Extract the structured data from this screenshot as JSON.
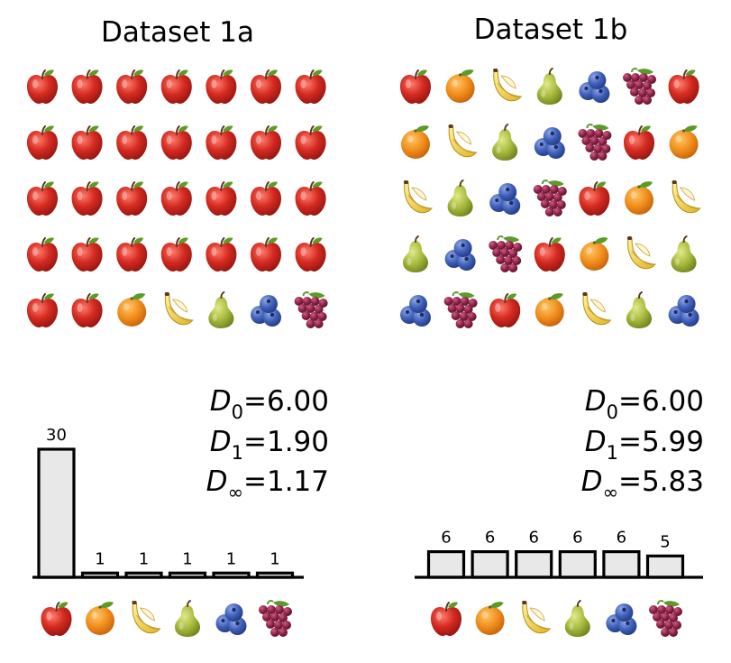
{
  "panels": [
    {
      "id": "a",
      "title": "Dataset 1a",
      "grid": [
        [
          "apple",
          "apple",
          "apple",
          "apple",
          "apple",
          "apple",
          "apple"
        ],
        [
          "apple",
          "apple",
          "apple",
          "apple",
          "apple",
          "apple",
          "apple"
        ],
        [
          "apple",
          "apple",
          "apple",
          "apple",
          "apple",
          "apple",
          "apple"
        ],
        [
          "apple",
          "apple",
          "apple",
          "apple",
          "apple",
          "apple",
          "apple"
        ],
        [
          "apple",
          "apple",
          "orange",
          "banana",
          "pear",
          "blueberry",
          "grapes"
        ]
      ],
      "diversity": [
        {
          "letter": "D",
          "sub": "0",
          "value": "=6.00"
        },
        {
          "letter": "D",
          "sub": "1",
          "value": "=1.90"
        },
        {
          "letter": "D",
          "sub": "∞",
          "value": "=1.17"
        }
      ],
      "histogram": {
        "categories": [
          "apple",
          "orange",
          "banana",
          "pear",
          "blueberry",
          "grapes"
        ],
        "values": [
          30,
          1,
          1,
          1,
          1,
          1
        ],
        "labels": [
          "30",
          "1",
          "1",
          "1",
          "1",
          "1"
        ]
      }
    },
    {
      "id": "b",
      "title": "Dataset 1b",
      "grid": [
        [
          "apple",
          "orange",
          "banana",
          "pear",
          "blueberry",
          "grapes",
          "apple"
        ],
        [
          "orange",
          "banana",
          "pear",
          "blueberry",
          "grapes",
          "apple",
          "orange"
        ],
        [
          "banana",
          "pear",
          "blueberry",
          "grapes",
          "apple",
          "orange",
          "banana"
        ],
        [
          "pear",
          "blueberry",
          "grapes",
          "apple",
          "orange",
          "banana",
          "pear"
        ],
        [
          "blueberry",
          "grapes",
          "apple",
          "orange",
          "banana",
          "pear",
          "blueberry"
        ]
      ],
      "diversity": [
        {
          "letter": "D",
          "sub": "0",
          "value": "=6.00"
        },
        {
          "letter": "D",
          "sub": "1",
          "value": "=5.99"
        },
        {
          "letter": "D",
          "sub": "∞",
          "value": "=5.83"
        }
      ],
      "histogram": {
        "categories": [
          "apple",
          "orange",
          "banana",
          "pear",
          "blueberry",
          "grapes"
        ],
        "values": [
          6,
          6,
          6,
          6,
          6,
          5
        ],
        "labels": [
          "6",
          "6",
          "6",
          "6",
          "6",
          "5"
        ]
      }
    }
  ],
  "colors": {
    "apple": "#d42a20",
    "orange": "#f08c1a",
    "banana": "#f5d23c",
    "pear": "#a5b83a",
    "blueberry": "#3f5fb8",
    "grapes": "#8c2447",
    "leaf": "#5c9a2a",
    "bar_fill": "#e8e8e8"
  }
}
